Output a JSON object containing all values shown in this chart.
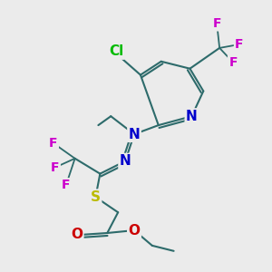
{
  "background_color": "#ebebeb",
  "bond_color": "#2d6b6b",
  "figsize": [
    3.0,
    3.0
  ],
  "dpi": 100,
  "colors": {
    "Cl": "#00bb00",
    "N": "#0000cc",
    "S": "#bbbb00",
    "O": "#cc0000",
    "F": "#cc00cc",
    "C": "#2d6b6b"
  }
}
